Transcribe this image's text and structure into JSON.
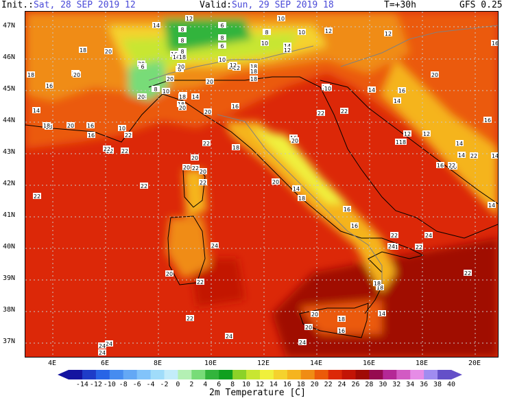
{
  "header": {
    "init_label": "Init.:",
    "init_value": "Sat, 28 SEP 2019  12",
    "valid_label": "Valid:",
    "valid_value": "Sun, 29 SEP 2019  18",
    "forecast_step": "T=+30h",
    "model": "GFS 0.25"
  },
  "latitude_labels": [
    "47N",
    "46N",
    "45N",
    "44N",
    "43N",
    "42N",
    "41N",
    "40N",
    "39N",
    "38N",
    "37N"
  ],
  "longitude_labels": [
    "4E",
    "6E",
    "8E",
    "10E",
    "12E",
    "14E",
    "16E",
    "18E",
    "20E"
  ],
  "legend": {
    "title": "2m Temperature [C]",
    "labels": [
      "-14",
      "-12",
      "-10",
      "-8",
      "-6",
      "-4",
      "-2",
      "0",
      "2",
      "4",
      "6",
      "8",
      "10",
      "12",
      "14",
      "16",
      "18",
      "20",
      "22",
      "24",
      "26",
      "28",
      "30",
      "32",
      "34",
      "36",
      "38",
      "40"
    ],
    "colors": [
      "#1414a0",
      "#1e3cc8",
      "#2864e6",
      "#468cf0",
      "#64a8f5",
      "#82c3fa",
      "#a0dcfa",
      "#c3ecfa",
      "#b4f0b4",
      "#78dc78",
      "#32b43c",
      "#10a01e",
      "#8cd228",
      "#c8e632",
      "#f0f03c",
      "#f5d22d",
      "#f5b41e",
      "#f08c14",
      "#eb5a0a",
      "#dc2808",
      "#c31405",
      "#a00a05",
      "#960a50",
      "#b42896",
      "#d25ac3",
      "#e68ce6",
      "#a08cf0",
      "#6450c8"
    ]
  },
  "map_values": [
    {
      "v": "12"
    },
    {
      "v": "8"
    },
    {
      "v": "10"
    },
    {
      "v": "14"
    },
    {
      "v": "6"
    },
    {
      "v": "10"
    },
    {
      "v": "8"
    },
    {
      "v": "12"
    },
    {
      "v": "8"
    },
    {
      "v": "8"
    },
    {
      "v": "10"
    },
    {
      "v": "12"
    },
    {
      "v": "18"
    },
    {
      "v": "20"
    },
    {
      "v": "16"
    },
    {
      "v": "8"
    },
    {
      "v": "14"
    },
    {
      "v": "6"
    },
    {
      "v": "12"
    },
    {
      "v": "16"
    },
    {
      "v": "20"
    },
    {
      "v": "6"
    },
    {
      "v": "12"
    },
    {
      "v": "12"
    },
    {
      "v": "14"
    },
    {
      "v": "18"
    },
    {
      "v": "8"
    },
    {
      "v": "10"
    },
    {
      "v": "12"
    },
    {
      "v": "18"
    },
    {
      "v": "20"
    },
    {
      "v": "18"
    },
    {
      "v": "16"
    },
    {
      "v": "20"
    },
    {
      "v": "8"
    },
    {
      "v": "10"
    },
    {
      "v": "20"
    },
    {
      "v": "18"
    },
    {
      "v": "20"
    },
    {
      "v": "18"
    },
    {
      "v": "20"
    },
    {
      "v": "14"
    },
    {
      "v": "10"
    },
    {
      "v": "14"
    },
    {
      "v": "16"
    },
    {
      "v": "14"
    },
    {
      "v": "18"
    },
    {
      "v": "20"
    },
    {
      "v": "16"
    },
    {
      "v": "16"
    },
    {
      "v": "14"
    },
    {
      "v": "20"
    },
    {
      "v": "22"
    },
    {
      "v": "16"
    },
    {
      "v": "14"
    },
    {
      "v": "18"
    },
    {
      "v": "12"
    },
    {
      "v": "10"
    },
    {
      "v": "18"
    },
    {
      "v": "20"
    },
    {
      "v": "16"
    },
    {
      "v": "18"
    },
    {
      "v": "20"
    },
    {
      "v": "16"
    },
    {
      "v": "18"
    },
    {
      "v": "12"
    },
    {
      "v": "14"
    },
    {
      "v": "20"
    },
    {
      "v": "16"
    },
    {
      "v": "22"
    },
    {
      "v": "16"
    },
    {
      "v": "22"
    },
    {
      "v": "20"
    },
    {
      "v": "18"
    },
    {
      "v": "22"
    },
    {
      "v": "22"
    },
    {
      "v": "14"
    },
    {
      "v": "14"
    },
    {
      "v": "16"
    },
    {
      "v": "20"
    },
    {
      "v": "22"
    },
    {
      "v": "22"
    },
    {
      "v": "20"
    },
    {
      "v": "16"
    },
    {
      "v": "14"
    },
    {
      "v": "18"
    },
    {
      "v": "16"
    },
    {
      "v": "22"
    },
    {
      "v": "22"
    },
    {
      "v": "14"
    },
    {
      "v": "18"
    },
    {
      "v": "16"
    },
    {
      "v": "20"
    },
    {
      "v": "20"
    },
    {
      "v": "22"
    },
    {
      "v": "22"
    },
    {
      "v": "22"
    },
    {
      "v": "18"
    },
    {
      "v": "14"
    },
    {
      "v": "16"
    },
    {
      "v": "24"
    },
    {
      "v": "24"
    },
    {
      "v": "24"
    },
    {
      "v": "22"
    },
    {
      "v": "20"
    },
    {
      "v": "22"
    },
    {
      "v": "24"
    },
    {
      "v": "18"
    },
    {
      "v": "22"
    },
    {
      "v": "22"
    },
    {
      "v": "24"
    },
    {
      "v": "20"
    },
    {
      "v": "20"
    },
    {
      "v": "22"
    },
    {
      "v": "18"
    },
    {
      "v": "22"
    },
    {
      "v": "24"
    },
    {
      "v": "24"
    },
    {
      "v": "24"
    },
    {
      "v": "24"
    }
  ]
}
